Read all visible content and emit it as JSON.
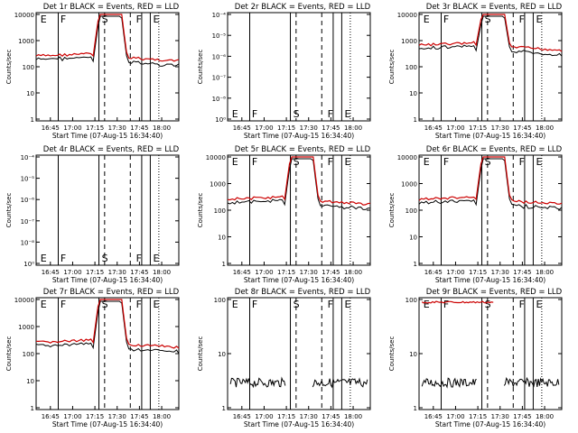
{
  "chart_data": [
    {
      "type": "line",
      "title": "Det 1r BLACK = Events, RED = LLD",
      "ylabel": "Counts/sec",
      "xlabel": "Start Time (07-Aug-15 16:34:40)",
      "xticks": [
        "16:45",
        "17:00",
        "17:15",
        "17:30",
        "17:45",
        "18:00"
      ],
      "ymode": "a",
      "xgroup": "a",
      "trace": "solar",
      "event_letters": [
        "E",
        "F",
        "S",
        "F",
        "E"
      ],
      "series": [
        {
          "name": "Events",
          "color": "#000000"
        },
        {
          "name": "LLD",
          "color": "#cc0000"
        }
      ]
    },
    {
      "type": "line",
      "title": "Det 2r BLACK = Events, RED = LLD",
      "ylabel": "Counts/sec",
      "xlabel": "Start Time (07-Aug-15 16:34:40)",
      "xticks": [
        "16:45",
        "17:00",
        "17:15",
        "17:30",
        "17:45",
        "18:00"
      ],
      "ymode": "b",
      "xgroup": "a",
      "trace": "none",
      "event_letters": [
        "E",
        "F",
        "S",
        "F",
        "E"
      ],
      "series": [
        {
          "name": "Events",
          "color": "#000000"
        },
        {
          "name": "LLD",
          "color": "#cc0000"
        }
      ]
    },
    {
      "type": "line",
      "title": "Det 3r BLACK = Events, RED = LLD",
      "ylabel": "Counts/sec",
      "xlabel": "Start Time (07-Aug-15 16:34:40)",
      "xticks": [
        "16:45",
        "17:00",
        "17:15",
        "17:30",
        "17:45",
        "18:00"
      ],
      "ymode": "a",
      "xgroup": "b",
      "trace": "solar3",
      "event_letters": [
        "E",
        "F",
        "S",
        "F",
        "E"
      ],
      "series": [
        {
          "name": "Events",
          "color": "#000000"
        },
        {
          "name": "LLD",
          "color": "#cc0000"
        }
      ]
    },
    {
      "type": "line",
      "title": "Det 4r BLACK = Events, RED = LLD",
      "ylabel": "Counts/sec",
      "xlabel": "Start Time (07-Aug-15 16:34:40)",
      "xticks": [
        "16:45",
        "17:00",
        "17:15",
        "17:30",
        "17:45",
        "18:00"
      ],
      "ymode": "b",
      "xgroup": "a",
      "trace": "none",
      "event_letters": [
        "E",
        "F",
        "S",
        "F",
        "E"
      ],
      "series": [
        {
          "name": "Events",
          "color": "#000000"
        },
        {
          "name": "LLD",
          "color": "#cc0000"
        }
      ]
    },
    {
      "type": "line",
      "title": "Det 5r BLACK = Events, RED = LLD",
      "ylabel": "Counts/sec",
      "xlabel": "Start Time (07-Aug-15 16:34:40)",
      "xticks": [
        "16:45",
        "17:00",
        "17:15",
        "17:30",
        "17:45",
        "18:00"
      ],
      "ymode": "a",
      "xgroup": "a",
      "trace": "solar",
      "event_letters": [
        "E",
        "F",
        "S",
        "F",
        "E"
      ],
      "series": [
        {
          "name": "Events",
          "color": "#000000"
        },
        {
          "name": "LLD",
          "color": "#cc0000"
        }
      ]
    },
    {
      "type": "line",
      "title": "Det 6r BLACK = Events, RED = LLD",
      "ylabel": "Counts/sec",
      "xlabel": "Start Time (07-Aug-15 16:34:40)",
      "xticks": [
        "16:45",
        "17:00",
        "17:15",
        "17:30",
        "17:45",
        "18:00"
      ],
      "ymode": "a",
      "xgroup": "b",
      "trace": "solar",
      "event_letters": [
        "E",
        "F",
        "S",
        "F",
        "E"
      ],
      "series": [
        {
          "name": "Events",
          "color": "#000000"
        },
        {
          "name": "LLD",
          "color": "#cc0000"
        }
      ]
    },
    {
      "type": "line",
      "title": "Det 7r BLACK = Events, RED = LLD",
      "ylabel": "Counts/sec",
      "xlabel": "Start Time (07-Aug-15 16:34:40)",
      "xticks": [
        "16:45",
        "17:00",
        "17:15",
        "17:30",
        "17:45",
        "18:00"
      ],
      "ymode": "a",
      "xgroup": "a",
      "trace": "solar",
      "event_letters": [
        "E",
        "F",
        "S",
        "F",
        "E"
      ],
      "series": [
        {
          "name": "Events",
          "color": "#000000"
        },
        {
          "name": "LLD",
          "color": "#cc0000"
        }
      ]
    },
    {
      "type": "line",
      "title": "Det 8r BLACK = Events, RED = LLD",
      "ylabel": "Counts/sec",
      "xlabel": "Start Time (07-Aug-15 16:34:40)",
      "xticks": [
        "16:45",
        "17:00",
        "17:15",
        "17:30",
        "17:45",
        "18:00"
      ],
      "ymode": "c",
      "xgroup": "a",
      "trace": "low",
      "event_letters": [
        "E",
        "F",
        "S",
        "F",
        "E"
      ],
      "series": [
        {
          "name": "Events",
          "color": "#000000"
        },
        {
          "name": "LLD",
          "color": "#cc0000"
        }
      ]
    },
    {
      "type": "line",
      "title": "Det 9r BLACK = Events, RED = LLD",
      "ylabel": "Counts/sec",
      "xlabel": "Start Time (07-Aug-15 16:34:40)",
      "xticks": [
        "16:45",
        "17:00",
        "17:15",
        "17:30",
        "17:45",
        "18:00"
      ],
      "ymode": "c",
      "xgroup": "b",
      "trace": "low9",
      "event_letters": [
        "E",
        "F",
        "S",
        "F",
        "E"
      ],
      "series": [
        {
          "name": "Events",
          "color": "#000000"
        },
        {
          "name": "LLD",
          "color": "#cc0000"
        }
      ]
    }
  ],
  "ytick_sets": {
    "a": [
      "10000",
      "1000",
      "100",
      "10",
      "1"
    ],
    "b": [
      "10⁻⁴",
      "10⁻⁵",
      "10⁻⁶",
      "10⁻⁷",
      "10⁻⁸",
      "10⁰"
    ],
    "c": [
      "100",
      "10",
      "1"
    ]
  },
  "xtick_sets": {
    "a": [
      "16:45",
      "17:00",
      "17:15",
      "17:30",
      "17:45",
      "18:00"
    ],
    "b": [
      "16:45",
      "17:00",
      "17:15",
      "17:30",
      "17:45",
      "18:00"
    ]
  },
  "colors": {
    "events": "#000000",
    "lld": "#cc0000",
    "background": "#ffffff"
  }
}
